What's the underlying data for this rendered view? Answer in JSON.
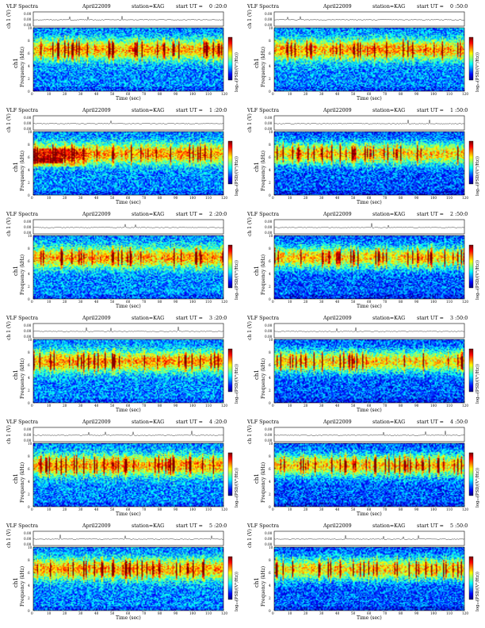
{
  "labels": {
    "title": "VLF Spectra",
    "date": "April22009",
    "station": "station=KAG",
    "start_prefix": "start  UT  =",
    "ch_ylabel": "ch 1 (V)",
    "freq_ylabel_left": "Frequency (kHz)",
    "freq_ylabel_right": "Frequency (kHz)",
    "ch_name": "ch1",
    "colorbar_label": "log₁₀(PSD/(V²/Hz))",
    "xlabel": "Time (sec)"
  },
  "chart_data": {
    "type": "heatmap",
    "x_label": "Time (sec)",
    "y_label": "Frequency (kHz)",
    "xlim": [
      0,
      120
    ],
    "ylim": [
      0,
      10
    ],
    "x_ticks": [
      "0",
      "10",
      "20",
      "30",
      "40",
      "50",
      "60",
      "70",
      "80",
      "90",
      "100",
      "110",
      "120"
    ],
    "y_ticks": [
      "0",
      "2",
      "4",
      "6",
      "8",
      "10"
    ],
    "ch_ticks": [
      "0.00",
      "0.00",
      "0.00"
    ],
    "colormap": "jet",
    "colors": {
      "low": "#00008f",
      "mid": "#00ffff",
      "high": "#ff0000"
    },
    "panels": [
      {
        "start": "0 :20:0",
        "column": "left"
      },
      {
        "start": "0 :50:0",
        "column": "right"
      },
      {
        "start": "1 :20:0",
        "column": "left"
      },
      {
        "start": "1 :50:0",
        "column": "right"
      },
      {
        "start": "2 :20:0",
        "column": "left"
      },
      {
        "start": "2 :50:0",
        "column": "right"
      },
      {
        "start": "3 :20:0",
        "column": "left"
      },
      {
        "start": "3 :50:0",
        "column": "right"
      },
      {
        "start": "4 :20:0",
        "column": "left"
      },
      {
        "start": "4 :50:0",
        "column": "right"
      },
      {
        "start": "5 :20:0",
        "column": "left"
      },
      {
        "start": "5 :50:0",
        "column": "right"
      }
    ]
  }
}
